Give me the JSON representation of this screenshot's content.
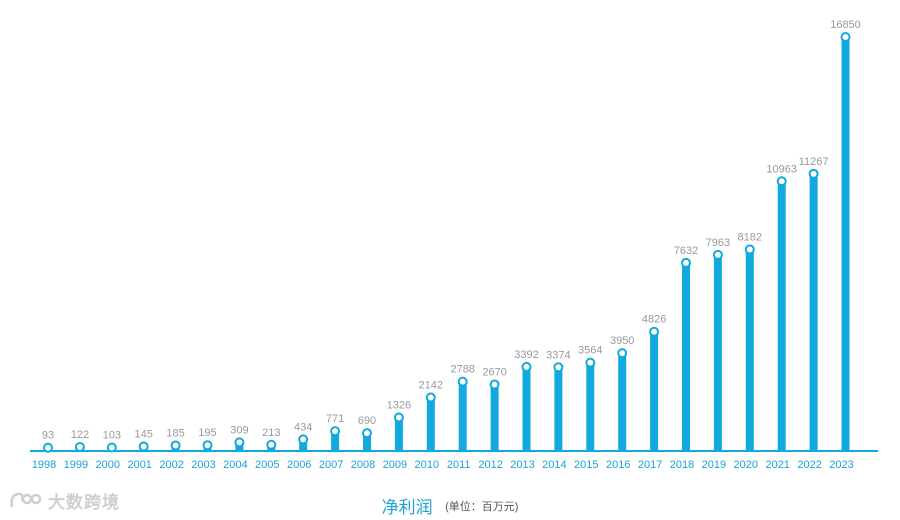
{
  "chart_data": {
    "type": "bar",
    "categories": [
      "1998",
      "1999",
      "2000",
      "2001",
      "2002",
      "2003",
      "2004",
      "2005",
      "2006",
      "2007",
      "2008",
      "2009",
      "2010",
      "2011",
      "2012",
      "2013",
      "2014",
      "2015",
      "2016",
      "2017",
      "2018",
      "2019",
      "2020",
      "2021",
      "2022",
      "2023"
    ],
    "values": [
      93,
      122,
      103,
      145,
      185,
      195,
      309,
      213,
      434,
      771,
      690,
      1326,
      2142,
      2788,
      2670,
      3392,
      3374,
      3564,
      3950,
      4826,
      7632,
      7963,
      8182,
      10963,
      11267,
      16850
    ],
    "title": "净利润",
    "unit": "(单位：百万元)",
    "ylim": [
      0,
      16850
    ],
    "grid": false,
    "data_labels": true
  },
  "colors": {
    "bar": "#12a9df",
    "axis_label": "#1aa3d6",
    "value_label": "#999999"
  },
  "watermark": {
    "text": "大数跨境"
  }
}
